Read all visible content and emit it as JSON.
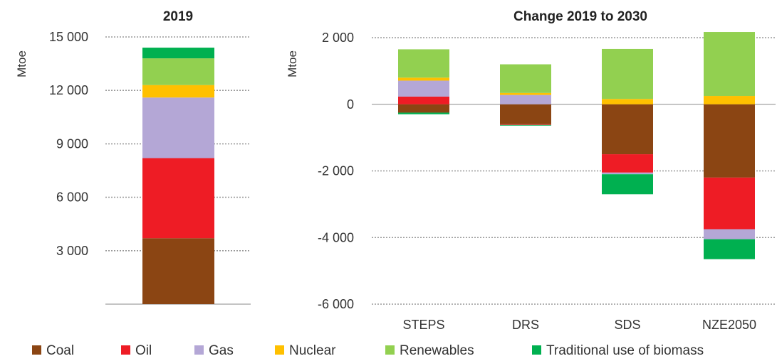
{
  "legend": [
    {
      "name": "Coal",
      "color": "#8B4513"
    },
    {
      "name": "Oil",
      "color": "#EE1C25"
    },
    {
      "name": "Gas",
      "color": "#B4A7D6"
    },
    {
      "name": "Nuclear",
      "color": "#FFC000"
    },
    {
      "name": "Renewables",
      "color": "#92D050"
    },
    {
      "name": "Traditional use of biomass",
      "color": "#00B050"
    }
  ],
  "chart_data": [
    {
      "type": "bar",
      "stacked": true,
      "title": "2019",
      "ylabel": "Mtoe",
      "ylim": [
        0,
        15000
      ],
      "yticks": [
        3000,
        6000,
        9000,
        12000,
        15000
      ],
      "ytick_labels": [
        "3 000",
        "6 000",
        "9 000",
        "12 000",
        "15 000"
      ],
      "categories": [
        ""
      ],
      "grid": true,
      "series": [
        {
          "name": "Coal",
          "values": [
            3700
          ]
        },
        {
          "name": "Oil",
          "values": [
            4500
          ]
        },
        {
          "name": "Gas",
          "values": [
            3400
          ]
        },
        {
          "name": "Nuclear",
          "values": [
            700
          ]
        },
        {
          "name": "Renewables",
          "values": [
            1500
          ]
        },
        {
          "name": "Traditional use of biomass",
          "values": [
            600
          ]
        }
      ]
    },
    {
      "type": "bar",
      "stacked": true,
      "title": "Change 2019 to 2030",
      "ylabel": "Mtoe",
      "ylim": [
        -6000,
        2000
      ],
      "yticks": [
        -6000,
        -4000,
        -2000,
        0,
        2000
      ],
      "ytick_labels": [
        "-6 000",
        "-4 000",
        "-2 000",
        "0",
        "2 000"
      ],
      "categories": [
        "STEPS",
        "DRS",
        "SDS",
        "NZE2050"
      ],
      "grid": true,
      "series": [
        {
          "name": "Coal",
          "values": [
            -250,
            -600,
            -1500,
            -2200
          ]
        },
        {
          "name": "Oil",
          "values": [
            230,
            -20,
            -550,
            -1550
          ]
        },
        {
          "name": "Gas",
          "values": [
            480,
            280,
            -50,
            -300
          ]
        },
        {
          "name": "Nuclear",
          "values": [
            90,
            60,
            160,
            250
          ]
        },
        {
          "name": "Renewables",
          "values": [
            850,
            860,
            1500,
            1920
          ]
        },
        {
          "name": "Traditional use of biomass",
          "values": [
            -50,
            -20,
            -600,
            -600
          ]
        }
      ]
    }
  ]
}
